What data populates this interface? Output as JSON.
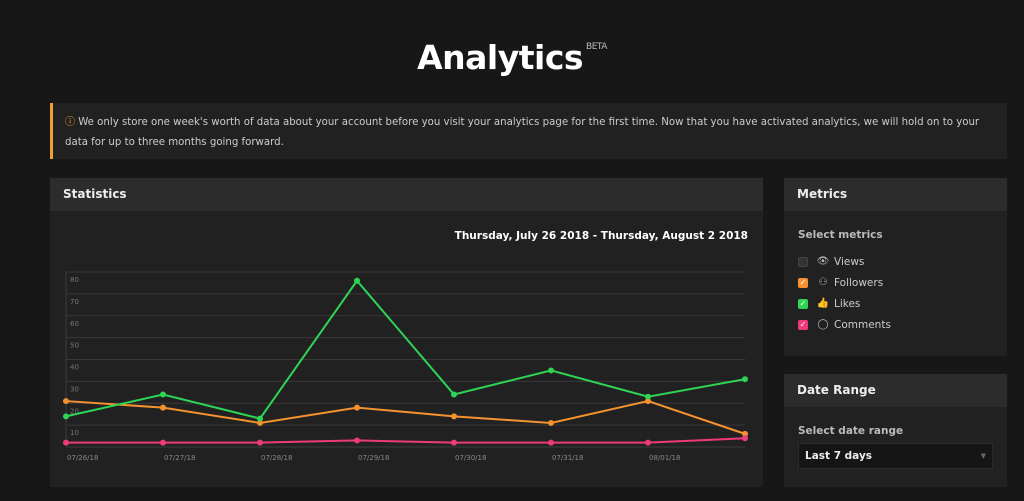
{
  "header": {
    "title": "Analytics",
    "badge": "BETA"
  },
  "notice": {
    "icon": "info-circle-icon",
    "text": "We only store one week's worth of data about your account before you visit your analytics page for the first time. Now that you have activated analytics, we will hold on to your data for up to three months going forward."
  },
  "statistics": {
    "title": "Statistics",
    "date_range": "Thursday, July 26 2018 - Thursday, August 2 2018"
  },
  "metrics": {
    "title": "Metrics",
    "label": "Select metrics",
    "items": [
      {
        "label": "Views",
        "checked": false,
        "icon": "eye-icon",
        "color": "#333333"
      },
      {
        "label": "Followers",
        "checked": true,
        "icon": "user-plus-icon",
        "color": "#f5922f"
      },
      {
        "label": "Likes",
        "checked": true,
        "icon": "thumbs-up-icon",
        "color": "#2fd455"
      },
      {
        "label": "Comments",
        "checked": true,
        "icon": "comment-icon",
        "color": "#ee3a7b"
      }
    ]
  },
  "date_range": {
    "title": "Date Range",
    "label": "Select date range",
    "selected": "Last 7 days"
  },
  "chart_data": {
    "type": "line",
    "x": [
      "07/26/18",
      "07/27/18",
      "07/28/18",
      "07/29/18",
      "07/30/18",
      "07/31/18",
      "08/01/18",
      ""
    ],
    "yticks": [
      10,
      20,
      30,
      40,
      50,
      60,
      70,
      80
    ],
    "ylim": [
      0,
      80
    ],
    "grid": true,
    "series": [
      {
        "name": "Followers",
        "color": "#f5922f",
        "values": [
          21,
          18,
          11,
          18,
          14,
          11,
          21,
          6
        ]
      },
      {
        "name": "Likes",
        "color": "#2fd455",
        "values": [
          14,
          24,
          13,
          76,
          24,
          35,
          23,
          31
        ]
      },
      {
        "name": "Comments",
        "color": "#ee3a7b",
        "values": [
          2,
          2,
          2,
          3,
          2,
          2,
          2,
          4
        ]
      }
    ]
  }
}
